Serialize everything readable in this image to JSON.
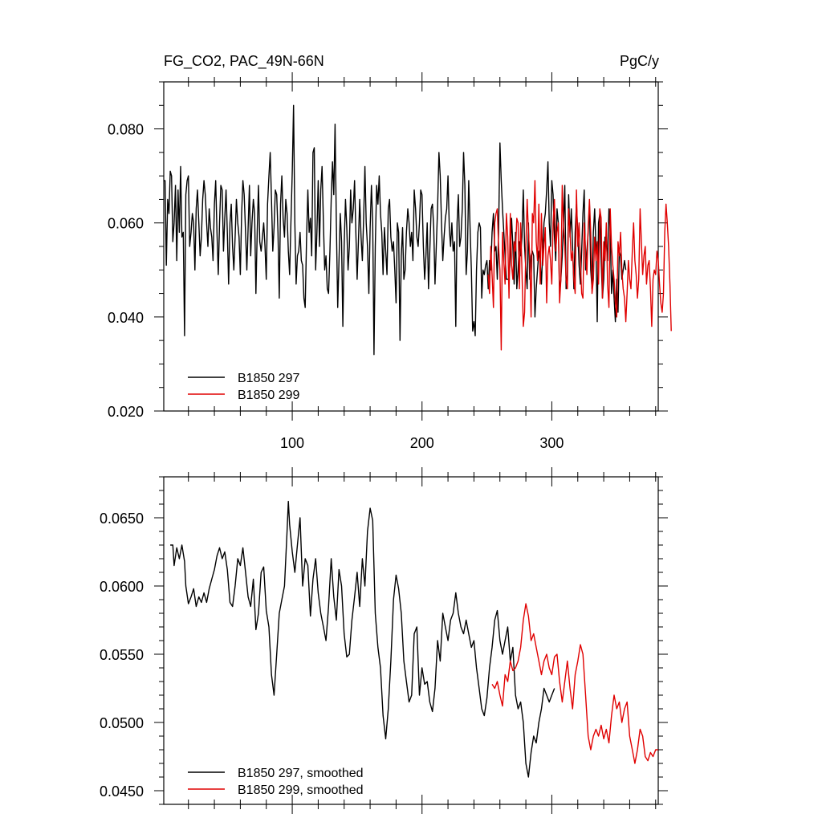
{
  "chart_data": [
    {
      "type": "line",
      "title": "FG_CO2, PAC_49N-66N",
      "units": "PgC/y",
      "xlabel": "",
      "ylabel": "",
      "xlim": [
        1,
        382
      ],
      "ylim": [
        0.02,
        0.09
      ],
      "xticks": [
        100,
        200,
        300
      ],
      "xtick_labels": [
        "100",
        "200",
        "300"
      ],
      "yticks": [
        0.02,
        0.04,
        0.06,
        0.08
      ],
      "ytick_labels": [
        "0.020",
        "0.040",
        "0.060",
        "0.080"
      ],
      "legend_position": "bottom-left",
      "series": [
        {
          "name": "B1850 297",
          "color": "#000000",
          "x_start": 1,
          "values": [
            0.069,
            0.069,
            0.051,
            0.065,
            0.062,
            0.071,
            0.07,
            0.056,
            0.06,
            0.068,
            0.052,
            0.067,
            0.058,
            0.072,
            0.057,
            0.058,
            0.036,
            0.066,
            0.069,
            0.07,
            0.055,
            0.058,
            0.062,
            0.06,
            0.05,
            0.063,
            0.067,
            0.06,
            0.053,
            0.057,
            0.065,
            0.069,
            0.066,
            0.06,
            0.055,
            0.063,
            0.059,
            0.057,
            0.052,
            0.064,
            0.069,
            0.058,
            0.049,
            0.06,
            0.068,
            0.067,
            0.054,
            0.061,
            0.067,
            0.058,
            0.047,
            0.06,
            0.064,
            0.055,
            0.05,
            0.057,
            0.065,
            0.06,
            0.057,
            0.049,
            0.062,
            0.069,
            0.066,
            0.058,
            0.05,
            0.059,
            0.068,
            0.053,
            0.06,
            0.065,
            0.062,
            0.045,
            0.058,
            0.068,
            0.056,
            0.054,
            0.057,
            0.06,
            0.055,
            0.048,
            0.064,
            0.07,
            0.075,
            0.065,
            0.054,
            0.059,
            0.067,
            0.066,
            0.058,
            0.044,
            0.064,
            0.07,
            0.061,
            0.057,
            0.065,
            0.062,
            0.054,
            0.049,
            0.06,
            0.071,
            0.085,
            0.06,
            0.047,
            0.053,
            0.054,
            0.058,
            0.052,
            0.051,
            0.044,
            0.042,
            0.056,
            0.067,
            0.058,
            0.061,
            0.053,
            0.075,
            0.076,
            0.05,
            0.058,
            0.069,
            0.055,
            0.067,
            0.072,
            0.06,
            0.05,
            0.053,
            0.046,
            0.045,
            0.054,
            0.065,
            0.073,
            0.066,
            0.081,
            0.06,
            0.042,
            0.052,
            0.062,
            0.056,
            0.038,
            0.055,
            0.065,
            0.059,
            0.05,
            0.055,
            0.067,
            0.06,
            0.063,
            0.069,
            0.058,
            0.048,
            0.056,
            0.065,
            0.057,
            0.052,
            0.061,
            0.072,
            0.06,
            0.055,
            0.045,
            0.059,
            0.068,
            0.06,
            0.032,
            0.055,
            0.068,
            0.064,
            0.07,
            0.062,
            0.058,
            0.049,
            0.059,
            0.054,
            0.049,
            0.063,
            0.065,
            0.057,
            0.054,
            0.056,
            0.05,
            0.043,
            0.06,
            0.058,
            0.035,
            0.053,
            0.059,
            0.048,
            0.05,
            0.058,
            0.063,
            0.06,
            0.055,
            0.058,
            0.052,
            0.067,
            0.063,
            0.057,
            0.055,
            0.06,
            0.067,
            0.066,
            0.055,
            0.048,
            0.053,
            0.06,
            0.046,
            0.054,
            0.063,
            0.064,
            0.059,
            0.047,
            0.055,
            0.063,
            0.075,
            0.07,
            0.06,
            0.052,
            0.057,
            0.061,
            0.063,
            0.07,
            0.059,
            0.055,
            0.06,
            0.054,
            0.056,
            0.038,
            0.06,
            0.066,
            0.055,
            0.057,
            0.063,
            0.075,
            0.068,
            0.049,
            0.054,
            0.069,
            0.059,
            0.05,
            0.037,
            0.039,
            0.036,
            0.05,
            0.058,
            0.06,
            0.059,
            0.044,
            0.05,
            0.049,
            0.051,
            0.052,
            0.046,
            0.052,
            0.05,
            0.058,
            0.062,
            0.054,
            0.055,
            0.048,
            0.058,
            0.077,
            0.069,
            0.063,
            0.058,
            0.053,
            0.048,
            0.048,
            0.048,
            0.053,
            0.061,
            0.055,
            0.047,
            0.058,
            0.046,
            0.05,
            0.056,
            0.053,
            0.057,
            0.067,
            0.055,
            0.05,
            0.046,
            0.06,
            0.048,
            0.053,
            0.054,
            0.053,
            0.04,
            0.046,
            0.05,
            0.054,
            0.052,
            0.047,
            0.054,
            0.06,
            0.062,
            0.067,
            0.073,
            0.06,
            0.055,
            0.069,
            0.066,
            0.057,
            0.052,
            0.063,
            0.06,
            0.045,
            0.048,
            0.053,
            0.06,
            0.068,
            0.046,
            0.049,
            0.066,
            0.057,
            0.063,
            0.055,
            0.046,
            0.058,
            0.064,
            0.058,
            0.051,
            0.047,
            0.054,
            0.062,
            0.067,
            0.05,
            0.054,
            0.058,
            0.064,
            0.05,
            0.046,
            0.058,
            0.063,
            0.055,
            0.039,
            0.06,
            0.062,
            0.052,
            0.044,
            0.048,
            0.057,
            0.056,
            0.052,
            0.063,
            0.058,
            0.045,
            0.05,
            0.044,
            0.039,
            0.048,
            0.041,
            0.054,
            0.053,
            0.048,
            0.05,
            0.052,
            0.05
          ]
        },
        {
          "name": "B1850 299",
          "color": "#e00000",
          "x_start": 251,
          "values": [
            0.049,
            0.045,
            0.055,
            0.049,
            0.042,
            0.06,
            0.062,
            0.063,
            0.055,
            0.05,
            0.033,
            0.058,
            0.052,
            0.047,
            0.062,
            0.057,
            0.044,
            0.062,
            0.051,
            0.048,
            0.056,
            0.054,
            0.061,
            0.06,
            0.046,
            0.06,
            0.05,
            0.038,
            0.041,
            0.055,
            0.065,
            0.058,
            0.053,
            0.04,
            0.062,
            0.06,
            0.069,
            0.056,
            0.052,
            0.064,
            0.047,
            0.062,
            0.051,
            0.055,
            0.059,
            0.043,
            0.053,
            0.055,
            0.052,
            0.047,
            0.06,
            0.065,
            0.054,
            0.058,
            0.06,
            0.043,
            0.048,
            0.068,
            0.059,
            0.055,
            0.048,
            0.046,
            0.063,
            0.058,
            0.052,
            0.054,
            0.048,
            0.045,
            0.067,
            0.055,
            0.06,
            0.052,
            0.045,
            0.044,
            0.06,
            0.054,
            0.049,
            0.059,
            0.065,
            0.058,
            0.045,
            0.048,
            0.057,
            0.052,
            0.056,
            0.047,
            0.063,
            0.061,
            0.044,
            0.056,
            0.052,
            0.06,
            0.047,
            0.042,
            0.063,
            0.055,
            0.051,
            0.048,
            0.043,
            0.04,
            0.056,
            0.053,
            0.058,
            0.05,
            0.046,
            0.044,
            0.039,
            0.045,
            0.052,
            0.048,
            0.046,
            0.054,
            0.06,
            0.052,
            0.049,
            0.044,
            0.048,
            0.063,
            0.056,
            0.049,
            0.053,
            0.055,
            0.047,
            0.051,
            0.052,
            0.046,
            0.038,
            0.048,
            0.05,
            0.049,
            0.054,
            0.052,
            0.047,
            0.043,
            0.041,
            0.045,
            0.058,
            0.064,
            0.06,
            0.055,
            0.047,
            0.037
          ]
        }
      ]
    },
    {
      "type": "line",
      "title": "",
      "xlabel": "",
      "ylabel": "",
      "xlim": [
        1,
        382
      ],
      "ylim": [
        0.044,
        0.068
      ],
      "xticks": [
        100,
        200,
        300
      ],
      "yticks": [
        0.045,
        0.05,
        0.055,
        0.06,
        0.065
      ],
      "ytick_labels": [
        "0.0450",
        "0.0500",
        "0.0550",
        "0.0600",
        "0.0650"
      ],
      "legend_position": "bottom-left",
      "series": [
        {
          "name": "B1850 297, smoothed",
          "color": "#000000",
          "x": [
            6,
            8,
            9,
            11,
            13,
            15,
            17,
            18,
            20,
            22,
            24,
            26,
            28,
            30,
            32,
            34,
            36,
            38,
            40,
            42,
            44,
            46,
            48,
            50,
            52,
            54,
            56,
            58,
            60,
            62,
            64,
            66,
            68,
            70,
            72,
            74,
            76,
            78,
            80,
            82,
            84,
            86,
            88,
            90,
            92,
            94,
            96,
            97,
            98,
            100,
            102,
            104,
            106,
            108,
            110,
            112,
            114,
            116,
            118,
            120,
            122,
            124,
            126,
            128,
            130,
            132,
            134,
            136,
            138,
            140,
            142,
            144,
            146,
            148,
            150,
            152,
            154,
            156,
            158,
            160,
            162,
            164,
            166,
            168,
            170,
            172,
            174,
            176,
            178,
            180,
            182,
            184,
            186,
            188,
            190,
            192,
            194,
            196,
            198,
            200,
            202,
            204,
            206,
            208,
            210,
            212,
            214,
            216,
            218,
            220,
            222,
            224,
            226,
            228,
            230,
            232,
            234,
            236,
            238,
            240,
            242,
            244,
            246,
            248,
            250,
            252,
            254,
            256,
            258,
            260,
            262,
            264,
            266,
            268,
            270,
            272,
            274,
            276,
            278,
            280,
            282,
            284,
            286,
            288,
            290,
            292,
            294,
            296,
            298,
            300,
            302
          ],
          "values": [
            0.063,
            0.063,
            0.0615,
            0.0628,
            0.062,
            0.063,
            0.0618,
            0.06,
            0.0587,
            0.0592,
            0.0598,
            0.0585,
            0.0592,
            0.0588,
            0.0595,
            0.0588,
            0.0598,
            0.0605,
            0.0612,
            0.0622,
            0.0628,
            0.062,
            0.0625,
            0.0612,
            0.0588,
            0.0585,
            0.06,
            0.062,
            0.0615,
            0.0628,
            0.061,
            0.0592,
            0.0585,
            0.0605,
            0.0568,
            0.058,
            0.061,
            0.0614,
            0.0582,
            0.057,
            0.0535,
            0.052,
            0.055,
            0.058,
            0.059,
            0.06,
            0.064,
            0.0662,
            0.0645,
            0.0625,
            0.061,
            0.063,
            0.065,
            0.06,
            0.062,
            0.0615,
            0.0578,
            0.0605,
            0.062,
            0.0595,
            0.058,
            0.057,
            0.056,
            0.0585,
            0.062,
            0.0592,
            0.0575,
            0.0612,
            0.06,
            0.0565,
            0.0548,
            0.055,
            0.0575,
            0.0592,
            0.061,
            0.0585,
            0.062,
            0.06,
            0.064,
            0.0657,
            0.0648,
            0.058,
            0.0555,
            0.054,
            0.0505,
            0.0488,
            0.051,
            0.0545,
            0.059,
            0.0608,
            0.0598,
            0.058,
            0.0545,
            0.053,
            0.0515,
            0.052,
            0.0565,
            0.057,
            0.052,
            0.054,
            0.0528,
            0.053,
            0.0515,
            0.0508,
            0.0525,
            0.056,
            0.0545,
            0.058,
            0.057,
            0.056,
            0.0575,
            0.058,
            0.0595,
            0.058,
            0.057,
            0.0565,
            0.0575,
            0.0565,
            0.0555,
            0.056,
            0.054,
            0.0525,
            0.051,
            0.0505,
            0.0518,
            0.054,
            0.0555,
            0.0575,
            0.0582,
            0.056,
            0.055,
            0.056,
            0.057,
            0.0545,
            0.0555,
            0.052,
            0.051,
            0.0515,
            0.05,
            0.047,
            0.046,
            0.0478,
            0.049,
            0.0485,
            0.05,
            0.051,
            0.0525,
            0.052,
            0.0515,
            0.052,
            0.0525
          ]
        },
        {
          "name": "B1850 299, smoothed",
          "color": "#e00000",
          "x": [
            254,
            256,
            258,
            260,
            262,
            264,
            266,
            268,
            270,
            272,
            274,
            276,
            278,
            280,
            282,
            284,
            286,
            288,
            290,
            292,
            294,
            296,
            298,
            300,
            302,
            304,
            306,
            308,
            310,
            312,
            314,
            316,
            318,
            320,
            322,
            324,
            326,
            328,
            330,
            332,
            334,
            336,
            338,
            340,
            342,
            344,
            346,
            348,
            350,
            352,
            354,
            356,
            358,
            360,
            362,
            364,
            366,
            368,
            370,
            372,
            374,
            376,
            378,
            380,
            382
          ],
          "values": [
            0.0528,
            0.0525,
            0.053,
            0.052,
            0.0512,
            0.0535,
            0.053,
            0.0545,
            0.0538,
            0.054,
            0.0545,
            0.0555,
            0.0575,
            0.0587,
            0.0578,
            0.056,
            0.0565,
            0.0555,
            0.0545,
            0.0535,
            0.0545,
            0.055,
            0.054,
            0.0535,
            0.0548,
            0.055,
            0.053,
            0.0515,
            0.053,
            0.0545,
            0.0525,
            0.051,
            0.0535,
            0.0545,
            0.0557,
            0.055,
            0.052,
            0.049,
            0.048,
            0.049,
            0.0495,
            0.049,
            0.0498,
            0.0488,
            0.0495,
            0.0485,
            0.0505,
            0.052,
            0.051,
            0.0515,
            0.05,
            0.051,
            0.0515,
            0.049,
            0.048,
            0.047,
            0.048,
            0.0495,
            0.049,
            0.0475,
            0.0472,
            0.0478,
            0.0475,
            0.048,
            0.048
          ]
        }
      ]
    }
  ]
}
